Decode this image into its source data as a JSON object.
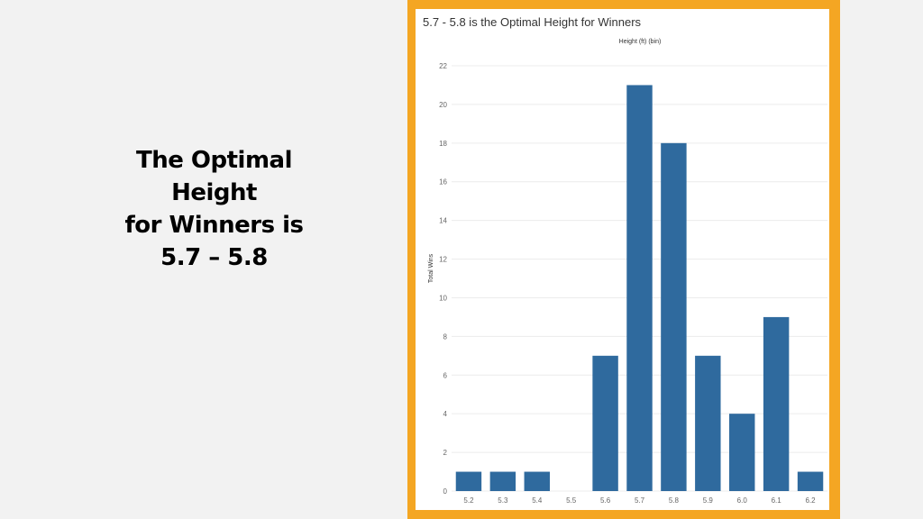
{
  "headline": {
    "lines": [
      "The Optimal",
      "Height",
      "for Winners is",
      "5.7 – 5.8"
    ]
  },
  "colors": {
    "frame": "#f4a623",
    "bar": "#2f6a9e",
    "background": "#f2f2f2"
  },
  "chart_data": {
    "type": "bar",
    "title": "5.7 - 5.8 is the Optimal Height for Winners",
    "xlabel": "Height (ft) (bin)",
    "ylabel": "Total Wins",
    "categories": [
      "5.2",
      "5.3",
      "5.4",
      "5.5",
      "5.6",
      "5.7",
      "5.8",
      "5.9",
      "6.0",
      "6.1",
      "6.2"
    ],
    "values": [
      1,
      1,
      1,
      0,
      7,
      21,
      18,
      7,
      4,
      9,
      1
    ],
    "ylim": [
      0,
      22
    ],
    "yticks": [
      0,
      2,
      4,
      6,
      8,
      10,
      12,
      14,
      16,
      18,
      20,
      22
    ],
    "xlabel_position": "top",
    "grid": true,
    "legend": "none"
  }
}
